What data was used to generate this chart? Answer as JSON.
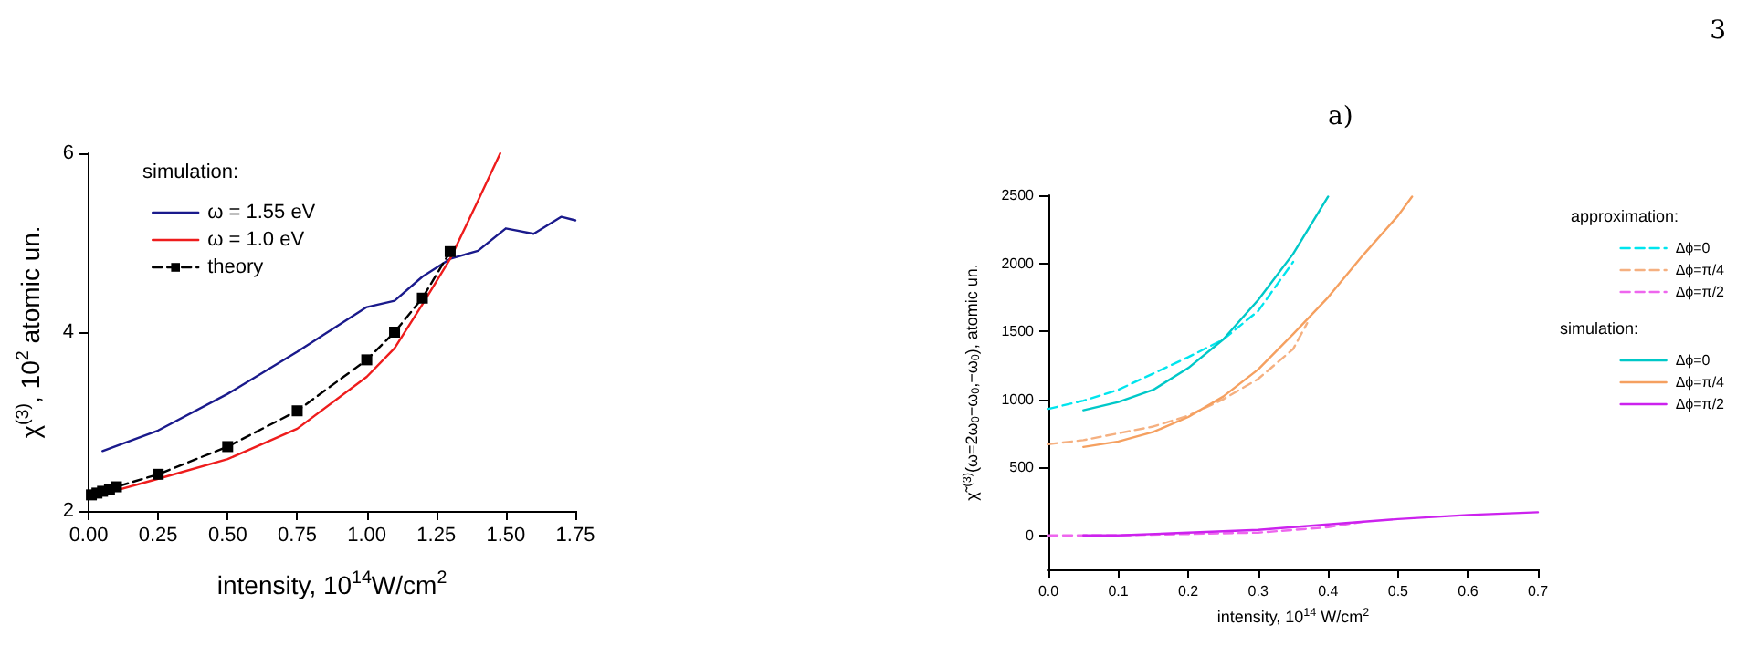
{
  "chart_data": [
    {
      "type": "line",
      "xlabel": "intensity, 10$^{14}$W/cm$^{2}$",
      "ylabel": "χ$^{(3)}$, 10$^{2}$ atomic un.",
      "xlim": [
        0,
        1.75
      ],
      "ylim": [
        2,
        6
      ],
      "xticks": [
        {
          "value": 0,
          "label": "0.00"
        },
        {
          "value": 0.25,
          "label": "0.25"
        },
        {
          "value": 0.5,
          "label": "0.50"
        },
        {
          "value": 0.75,
          "label": "0.75"
        },
        {
          "value": 1,
          "label": "1.00"
        },
        {
          "value": 1.25,
          "label": "1.25"
        },
        {
          "value": 1.5,
          "label": "1.50"
        },
        {
          "value": 1.75,
          "label": "1.75"
        }
      ],
      "yticks": [
        2,
        4,
        6
      ],
      "grid": false,
      "legend": "top left",
      "legend_title": "simulation:",
      "series": [
        {
          "name": "ω = 1.55 eV",
          "color": "#1a1a8c",
          "line_style": "solid",
          "marker": "none",
          "x": [
            0.05,
            0.25,
            0.5,
            0.75,
            1.0,
            1.1,
            1.2,
            1.3,
            1.4,
            1.5,
            1.6,
            1.7,
            1.75
          ],
          "values": [
            2.67,
            2.9,
            3.31,
            3.78,
            4.28,
            4.35,
            4.62,
            4.82,
            4.91,
            5.16,
            5.1,
            5.29,
            5.25
          ]
        },
        {
          "name": "ω = 1.0 eV",
          "color": "#ee1c1c",
          "line_style": "solid",
          "marker": "none",
          "x": [
            0.01,
            0.1,
            0.25,
            0.5,
            0.75,
            1.0,
            1.1,
            1.2,
            1.3,
            1.4,
            1.48
          ],
          "values": [
            2.17,
            2.23,
            2.36,
            2.58,
            2.92,
            3.5,
            3.82,
            4.31,
            4.82,
            5.47,
            6.0
          ]
        },
        {
          "name": "theory",
          "color": "#000000",
          "line_style": "dashed",
          "marker": "square",
          "x": [
            0.01,
            0.03,
            0.05,
            0.075,
            0.1,
            0.25,
            0.5,
            0.75,
            1.0,
            1.1,
            1.2,
            1.3
          ],
          "values": [
            2.18,
            2.2,
            2.22,
            2.24,
            2.27,
            2.41,
            2.72,
            3.12,
            3.69,
            4.0,
            4.38,
            4.9
          ]
        }
      ]
    },
    {
      "type": "line",
      "title": "a)",
      "xlabel": "intensity, 10$^{14}$ W/cm$^{2}$",
      "ylabel": "χ̃$^{(3)}$(ω=2ω$_{0}$−ω$_{0}$,−ω$_{0}$), atomic un.",
      "xlim": [
        0,
        0.7
      ],
      "ylim": [
        -250,
        2500
      ],
      "xticks": [
        {
          "value": 0,
          "label": "0.0"
        },
        {
          "value": 0.1,
          "label": "0.1"
        },
        {
          "value": 0.2,
          "label": "0.2"
        },
        {
          "value": 0.3,
          "label": "0.3"
        },
        {
          "value": 0.4,
          "label": "0.4"
        },
        {
          "value": 0.5,
          "label": "0.5"
        },
        {
          "value": 0.6,
          "label": "0.6"
        },
        {
          "value": 0.7,
          "label": "0.7"
        }
      ],
      "yticks": [
        0,
        500,
        1000,
        1500,
        2000,
        2500
      ],
      "grid": false,
      "legend": "right",
      "annotations": [
        "approximation:",
        "simulation:",
        "3"
      ],
      "series": [
        {
          "name": "Δϕ=0",
          "color": "#00e5ee",
          "line_style": "dashed",
          "marker": "none",
          "x": [
            0,
            0.05,
            0.1,
            0.15,
            0.2,
            0.25,
            0.3,
            0.35
          ],
          "values": [
            930,
            990,
            1070,
            1190,
            1310,
            1440,
            1650,
            2010
          ]
        },
        {
          "name": "Δϕ=π/4",
          "color": "#f5b080",
          "line_style": "dashed",
          "marker": "none",
          "x": [
            0,
            0.05,
            0.1,
            0.15,
            0.2,
            0.25,
            0.3,
            0.35,
            0.37
          ],
          "values": [
            670,
            700,
            750,
            800,
            880,
            1000,
            1150,
            1370,
            1560
          ]
        },
        {
          "name": "Δϕ=π/2",
          "color": "#ee66ee",
          "line_style": "dashed",
          "marker": "none",
          "x": [
            0,
            0.1,
            0.2,
            0.3,
            0.4,
            0.45
          ],
          "values": [
            0,
            0,
            10,
            20,
            60,
            100
          ]
        },
        {
          "name": "Δϕ=0",
          "color": "#00c8c8",
          "line_style": "solid",
          "marker": "none",
          "x": [
            0.05,
            0.1,
            0.15,
            0.2,
            0.25,
            0.3,
            0.35,
            0.4
          ],
          "values": [
            920,
            980,
            1070,
            1230,
            1440,
            1730,
            2070,
            2490
          ]
        },
        {
          "name": "Δϕ=π/4",
          "color": "#f5a060",
          "line_style": "solid",
          "marker": "none",
          "x": [
            0.05,
            0.1,
            0.15,
            0.2,
            0.25,
            0.3,
            0.35,
            0.4,
            0.45,
            0.5,
            0.52
          ],
          "values": [
            650,
            690,
            760,
            870,
            1020,
            1220,
            1480,
            1750,
            2060,
            2350,
            2490
          ]
        },
        {
          "name": "Δϕ=π/2",
          "color": "#cc22ee",
          "line_style": "solid",
          "marker": "none",
          "x": [
            0.05,
            0.1,
            0.2,
            0.3,
            0.4,
            0.5,
            0.6,
            0.7
          ],
          "values": [
            0,
            0,
            20,
            40,
            80,
            120,
            150,
            170
          ]
        }
      ]
    }
  ]
}
